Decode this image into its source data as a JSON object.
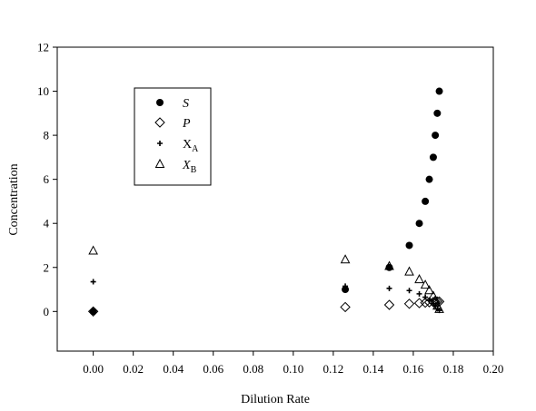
{
  "chart_data": {
    "type": "scatter",
    "xlabel": "Dilution Rate",
    "ylabel": "Concentration",
    "xlim": [
      -0.018,
      0.2
    ],
    "ylim": [
      -1.8,
      12
    ],
    "xticks": [
      "0.00",
      "0.02",
      "0.04",
      "0.06",
      "0.08",
      "0.10",
      "0.12",
      "0.14",
      "0.16",
      "0.18",
      "0.20"
    ],
    "yticks": [
      "0",
      "2",
      "4",
      "6",
      "8",
      "10",
      "12"
    ],
    "grid": false,
    "legend_position": "upper-left",
    "series": [
      {
        "name": "S",
        "italic": true,
        "subscript": "",
        "marker": "filled-circle",
        "points": [
          [
            0.0,
            0.0
          ],
          [
            0.126,
            1.0
          ],
          [
            0.148,
            2.0
          ],
          [
            0.158,
            3.0
          ],
          [
            0.163,
            4.0
          ],
          [
            0.166,
            5.0
          ],
          [
            0.168,
            6.0
          ],
          [
            0.17,
            7.0
          ],
          [
            0.171,
            8.0
          ],
          [
            0.172,
            9.0
          ],
          [
            0.173,
            10.0
          ]
        ]
      },
      {
        "name": "P",
        "italic": true,
        "subscript": "",
        "marker": "open-diamond",
        "points": [
          [
            0.0,
            0.0
          ],
          [
            0.126,
            0.2
          ],
          [
            0.148,
            0.3
          ],
          [
            0.158,
            0.35
          ],
          [
            0.163,
            0.38
          ],
          [
            0.166,
            0.4
          ],
          [
            0.168,
            0.42
          ],
          [
            0.17,
            0.43
          ],
          [
            0.171,
            0.44
          ],
          [
            0.172,
            0.45
          ],
          [
            0.173,
            0.45
          ]
        ]
      },
      {
        "name": "X",
        "italic": false,
        "subscript": "A",
        "marker": "plus",
        "points": [
          [
            0.0,
            1.35
          ],
          [
            0.126,
            1.15
          ],
          [
            0.148,
            1.05
          ],
          [
            0.158,
            0.95
          ],
          [
            0.163,
            0.8
          ],
          [
            0.166,
            0.65
          ],
          [
            0.168,
            0.5
          ],
          [
            0.17,
            0.35
          ],
          [
            0.171,
            0.25
          ],
          [
            0.172,
            0.12
          ],
          [
            0.173,
            0.05
          ]
        ]
      },
      {
        "name": "X",
        "italic": true,
        "subscript": "B",
        "marker": "open-triangle",
        "points": [
          [
            0.0,
            2.75
          ],
          [
            0.126,
            2.35
          ],
          [
            0.148,
            2.05
          ],
          [
            0.158,
            1.8
          ],
          [
            0.163,
            1.45
          ],
          [
            0.166,
            1.2
          ],
          [
            0.168,
            0.95
          ],
          [
            0.17,
            0.7
          ],
          [
            0.171,
            0.5
          ],
          [
            0.172,
            0.25
          ],
          [
            0.173,
            0.1
          ]
        ]
      }
    ]
  }
}
